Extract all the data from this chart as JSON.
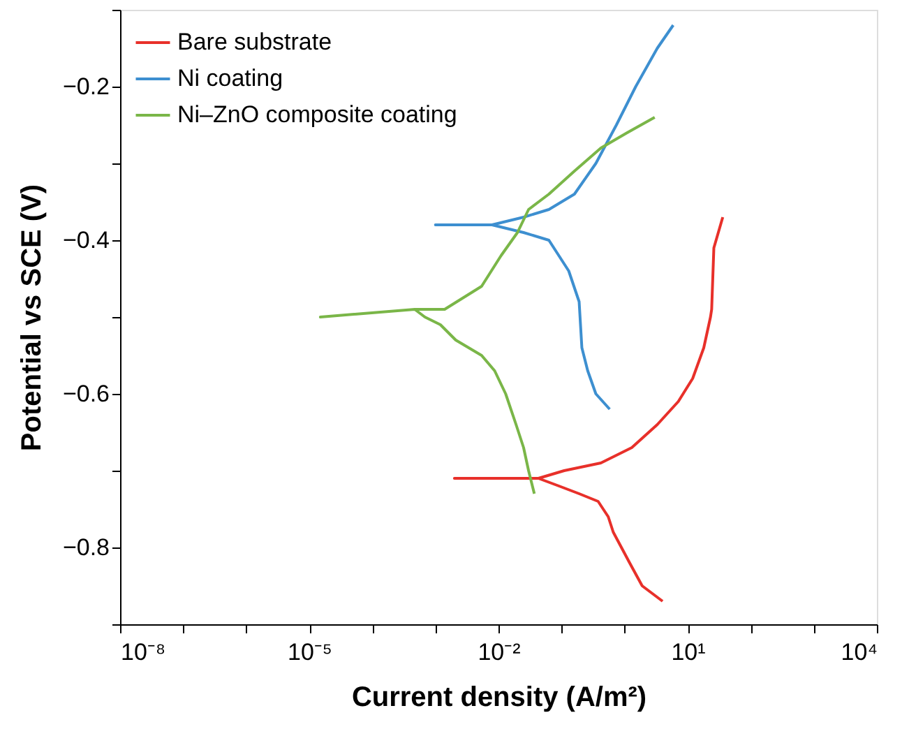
{
  "chart_data": {
    "type": "line",
    "xlabel": "Current density (A/m²)",
    "ylabel": "Potential vs SCE (V)",
    "log": "x",
    "grid": false,
    "legend": "top left",
    "line_style": "solid",
    "marker": "none",
    "xlim": [
      1e-08,
      10000
    ],
    "ylim": [
      -0.9,
      -0.1
    ],
    "xticks": [
      {
        "value": 1e-08,
        "label": "10⁻⁸"
      },
      {
        "value": 1e-07,
        "label": null
      },
      {
        "value": 1e-06,
        "label": null
      },
      {
        "value": 1e-05,
        "label": "10⁻⁵"
      },
      {
        "value": 0.0001,
        "label": null
      },
      {
        "value": 0.001,
        "label": null
      },
      {
        "value": 0.01,
        "label": "10⁻²"
      },
      {
        "value": 0.1,
        "label": null
      },
      {
        "value": 1,
        "label": null
      },
      {
        "value": 10,
        "label": "10¹"
      },
      {
        "value": 100,
        "label": null
      },
      {
        "value": 1000,
        "label": null
      },
      {
        "value": 10000,
        "label": "10⁴"
      }
    ],
    "yticks": [
      {
        "value": -0.9,
        "label": null
      },
      {
        "value": -0.8,
        "label": "−0.8"
      },
      {
        "value": -0.7,
        "label": null
      },
      {
        "value": -0.6,
        "label": "−0.6"
      },
      {
        "value": -0.5,
        "label": null
      },
      {
        "value": -0.4,
        "label": "−0.4"
      },
      {
        "value": -0.3,
        "label": null
      },
      {
        "value": -0.2,
        "label": "−0.2"
      },
      {
        "value": -0.1,
        "label": null
      }
    ],
    "series": [
      {
        "name": "Bare substrate",
        "color": "#e8302a",
        "x": [
          4.0,
          1.9,
          1.2,
          0.89,
          0.66,
          0.55,
          0.38,
          0.19,
          0.091,
          0.043,
          0.0095,
          0.002,
          0.0095,
          0.043,
          0.11,
          0.42,
          1.3,
          3.3,
          7.1,
          12,
          18,
          23,
          24,
          26,
          36
        ],
        "values": [
          -0.87,
          -0.85,
          -0.82,
          -0.8,
          -0.78,
          -0.76,
          -0.74,
          -0.73,
          -0.72,
          -0.71,
          -0.71,
          -0.71,
          -0.71,
          -0.71,
          -0.7,
          -0.69,
          -0.67,
          -0.64,
          -0.61,
          -0.58,
          -0.54,
          -0.5,
          -0.49,
          -0.41,
          -0.37
        ]
      },
      {
        "name": "Ni coating",
        "color": "#3d8fd0",
        "x": [
          0.58,
          0.35,
          0.26,
          0.21,
          0.19,
          0.13,
          0.063,
          0.025,
          0.0079,
          0.001,
          0.0079,
          0.025,
          0.063,
          0.16,
          0.35,
          0.74,
          1.5,
          3.3,
          5.9
        ],
        "values": [
          -0.62,
          -0.6,
          -0.57,
          -0.54,
          -0.48,
          -0.44,
          -0.4,
          -0.39,
          -0.38,
          -0.38,
          -0.38,
          -0.37,
          -0.36,
          -0.34,
          -0.3,
          -0.25,
          -0.2,
          -0.15,
          -0.12
        ]
      },
      {
        "name": "Ni–ZnO composite coating",
        "color": "#7ab648",
        "x": [
          0.037,
          0.03,
          0.025,
          0.019,
          0.013,
          0.0087,
          0.0054,
          0.0021,
          0.0012,
          0.00068,
          0.00047,
          1.5e-05,
          0.00047,
          0.0014,
          0.0054,
          0.011,
          0.02,
          0.03,
          0.063,
          0.16,
          0.42,
          1.1,
          3.0
        ],
        "values": [
          -0.73,
          -0.7,
          -0.67,
          -0.64,
          -0.6,
          -0.57,
          -0.55,
          -0.53,
          -0.51,
          -0.5,
          -0.49,
          -0.5,
          -0.49,
          -0.49,
          -0.46,
          -0.42,
          -0.39,
          -0.36,
          -0.34,
          -0.31,
          -0.28,
          -0.26,
          -0.24
        ]
      }
    ]
  }
}
